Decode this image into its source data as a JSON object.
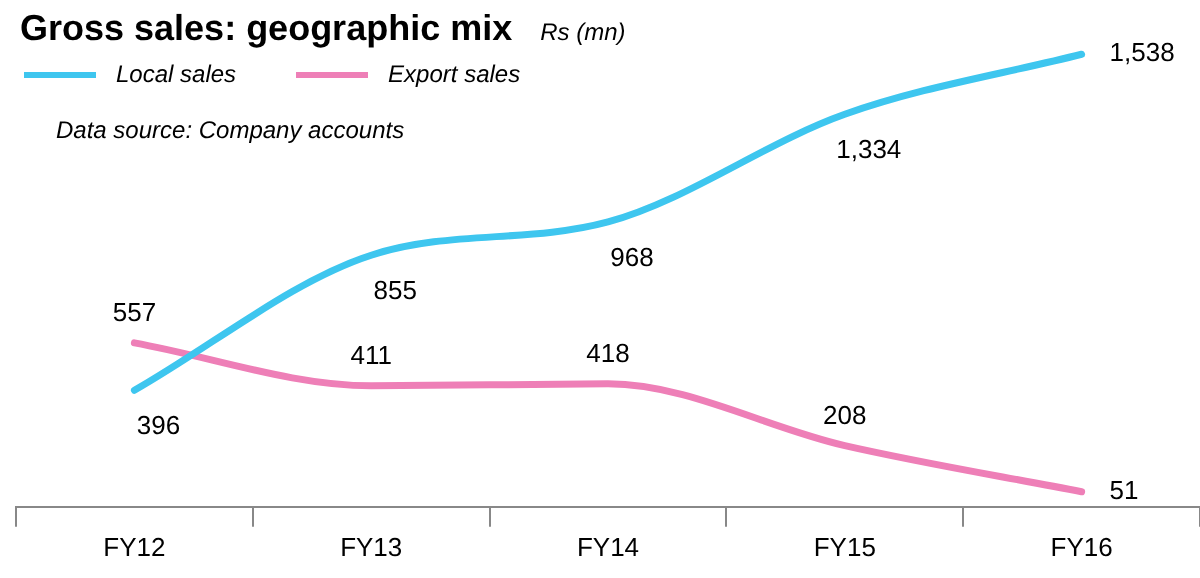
{
  "chart_data": {
    "type": "line",
    "title": "Gross sales: geographic mix",
    "subtitle": "Rs (mn)",
    "annotations": [
      "Data source: Company accounts"
    ],
    "categories": [
      "FY12",
      "FY13",
      "FY14",
      "FY15",
      "FY16"
    ],
    "series": [
      {
        "name": "Local sales",
        "color": "#3ec6ef",
        "values": [
          396,
          855,
          968,
          1334,
          1538
        ],
        "value_labels": [
          "396",
          "855",
          "968",
          "1,334",
          "1,538"
        ]
      },
      {
        "name": "Export sales",
        "color": "#ee7fb7",
        "values": [
          557,
          411,
          418,
          208,
          51
        ],
        "value_labels": [
          "557",
          "411",
          "418",
          "208",
          "51"
        ]
      }
    ],
    "legend": "top left",
    "marker": "none",
    "line_style": "solid"
  }
}
